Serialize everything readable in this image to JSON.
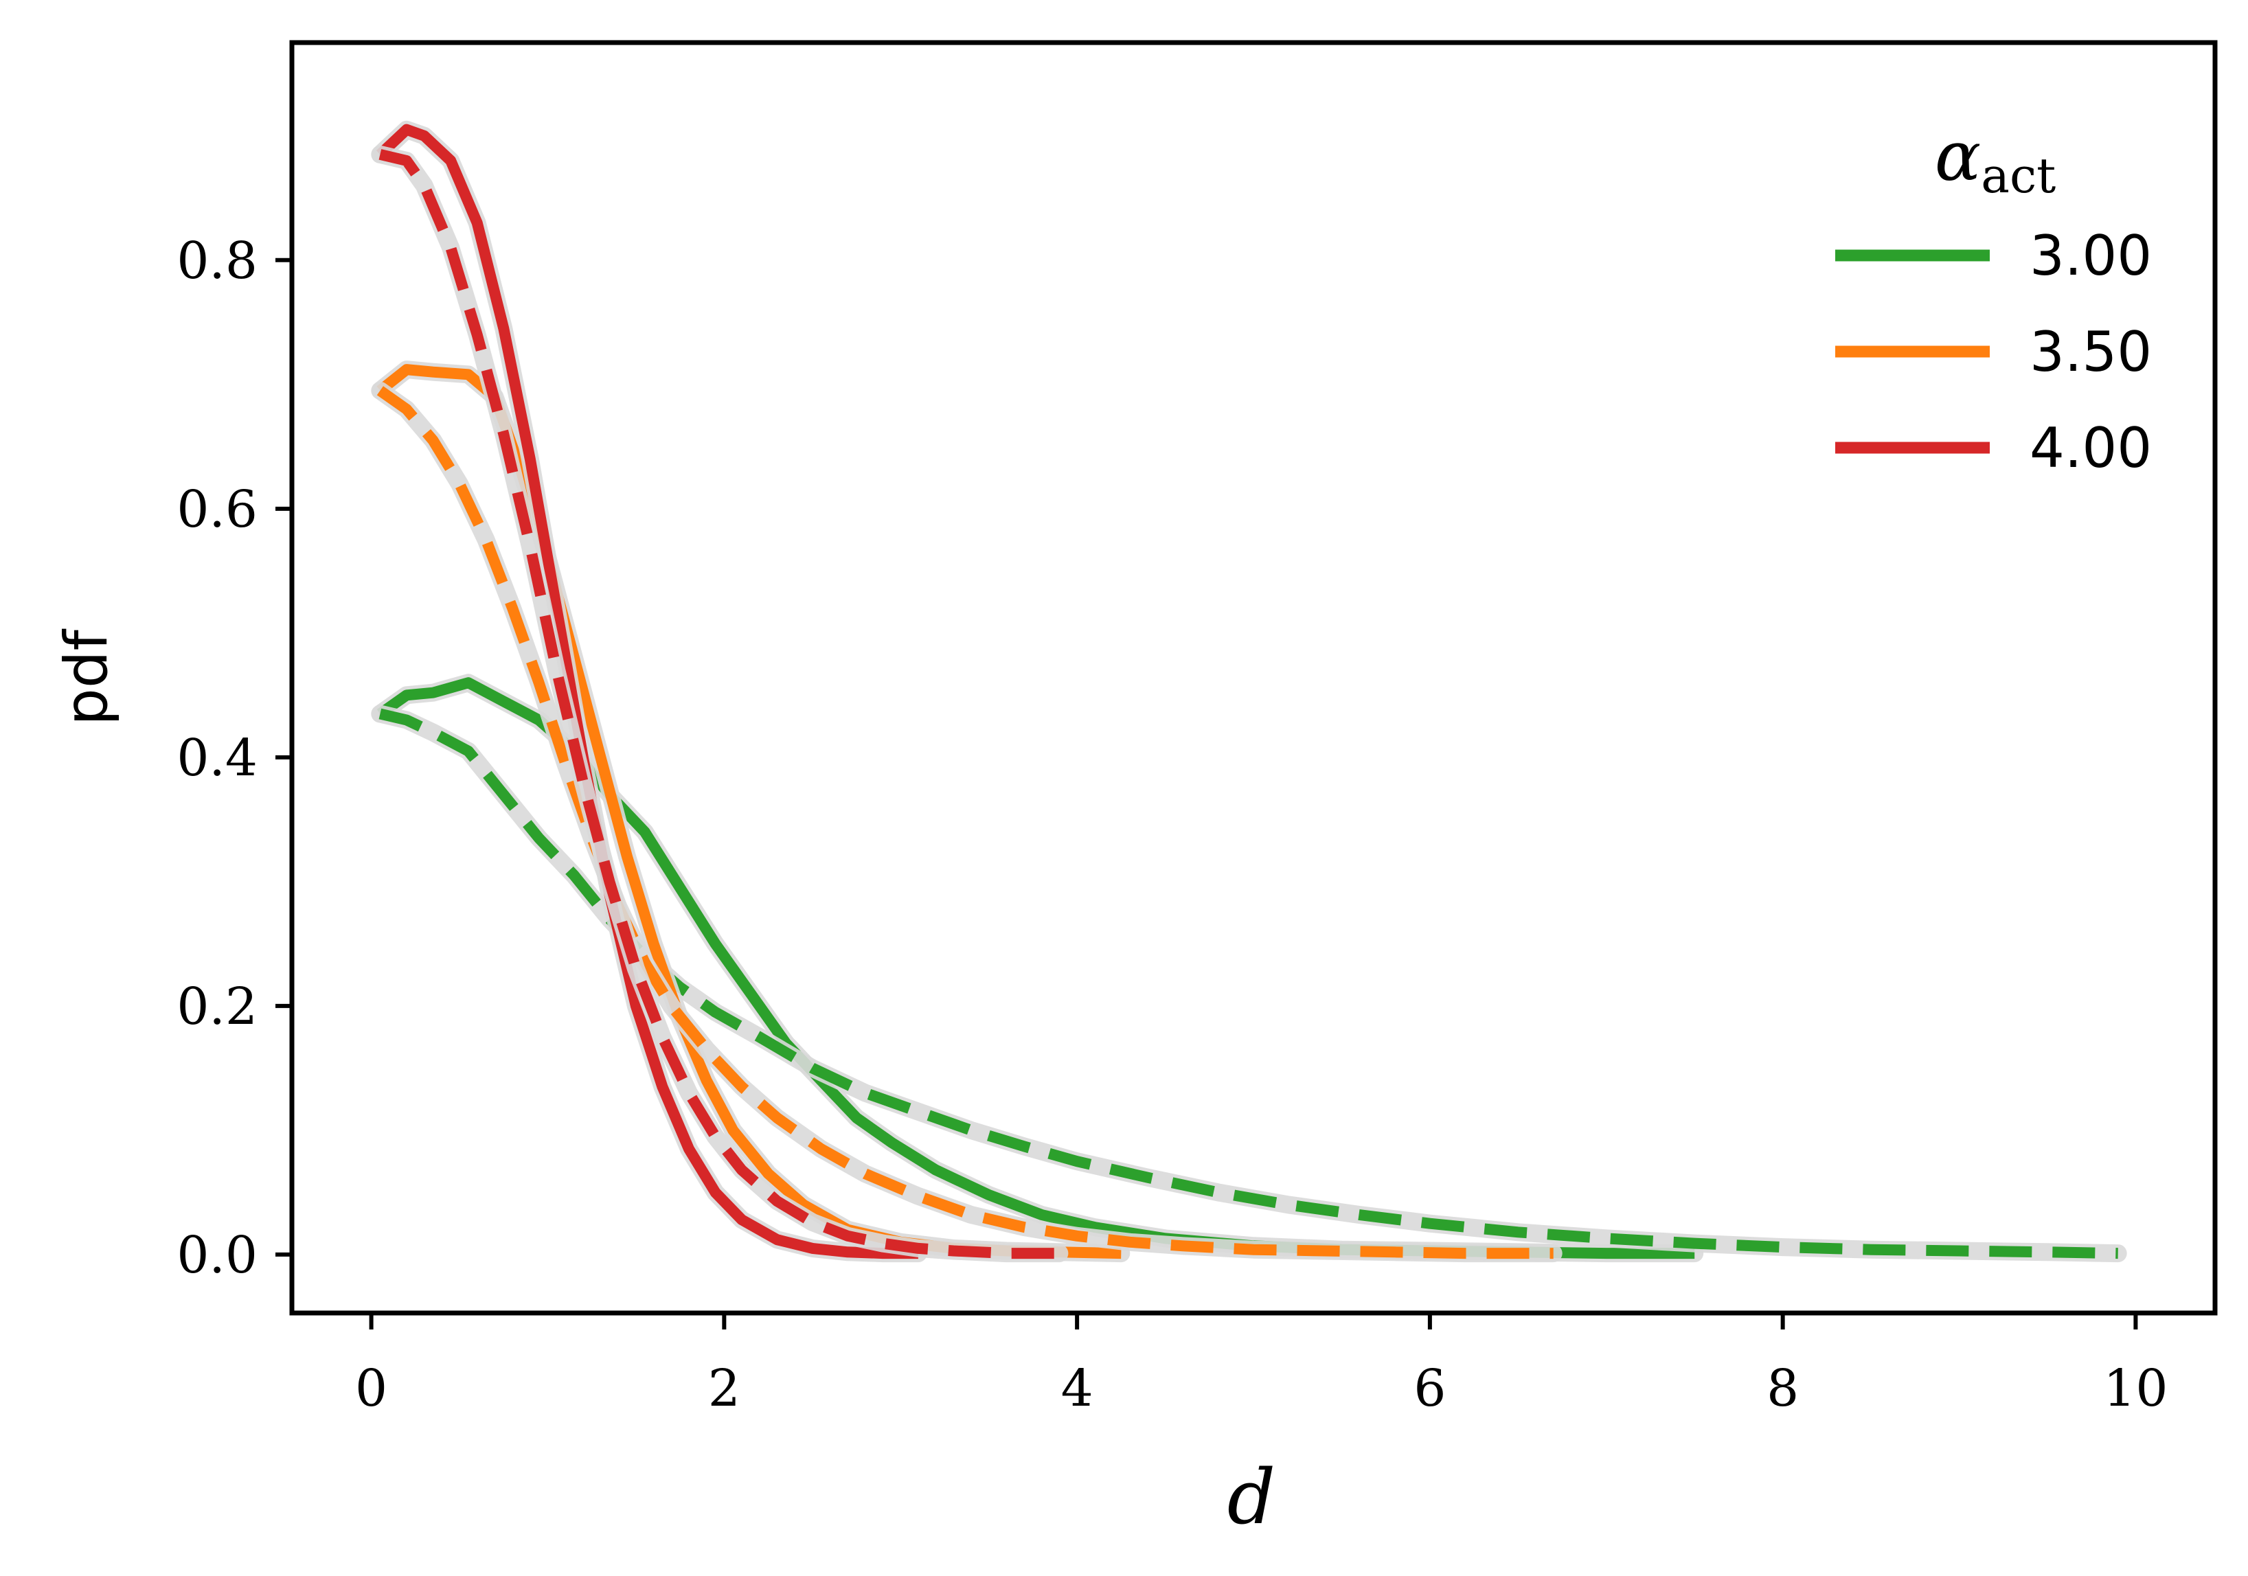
{
  "chart_data": {
    "type": "line",
    "xlabel": "d",
    "ylabel": "pdf",
    "xlim": [
      -0.45,
      10.45
    ],
    "ylim": [
      -0.047,
      0.975
    ],
    "xticks": [
      0,
      2,
      4,
      6,
      8,
      10
    ],
    "yticks": [
      0.0,
      0.2,
      0.4,
      0.6,
      0.8
    ],
    "xtick_labels": [
      "0",
      "2",
      "4",
      "6",
      "8",
      "10"
    ],
    "ytick_labels": [
      "0.0",
      "0.2",
      "0.4",
      "0.6",
      "0.8"
    ],
    "grid": false,
    "legend": {
      "title_main": "α",
      "title_sub": "act",
      "placement": "top-right"
    },
    "series": [
      {
        "name": "3.00",
        "color": "#2ca02c",
        "style": "solid",
        "x": [
          0.05,
          0.2,
          0.35,
          0.55,
          0.75,
          0.95,
          1.15,
          1.35,
          1.55,
          1.75,
          1.95,
          2.15,
          2.35,
          2.55,
          2.75,
          2.95,
          3.2,
          3.5,
          3.8,
          4.1,
          4.5,
          5.0,
          5.5,
          6.0,
          6.5,
          7.0,
          7.5
        ],
        "y": [
          0.435,
          0.45,
          0.452,
          0.46,
          0.445,
          0.43,
          0.405,
          0.37,
          0.34,
          0.295,
          0.25,
          0.21,
          0.17,
          0.14,
          0.11,
          0.09,
          0.068,
          0.048,
          0.032,
          0.022,
          0.013,
          0.007,
          0.004,
          0.003,
          0.002,
          0.001,
          0.001
        ]
      },
      {
        "name": "",
        "color": "#2ca02c",
        "style": "dashed",
        "x": [
          0.05,
          0.2,
          0.35,
          0.55,
          0.75,
          0.95,
          1.15,
          1.35,
          1.55,
          1.75,
          1.95,
          2.2,
          2.5,
          2.8,
          3.1,
          3.4,
          3.7,
          4.0,
          4.4,
          4.8,
          5.2,
          5.6,
          6.0,
          6.5,
          7.0,
          7.5,
          8.0,
          8.5,
          9.0,
          9.5,
          9.9
        ],
        "y": [
          0.435,
          0.43,
          0.42,
          0.405,
          0.37,
          0.335,
          0.305,
          0.27,
          0.24,
          0.215,
          0.195,
          0.175,
          0.15,
          0.13,
          0.115,
          0.1,
          0.087,
          0.075,
          0.062,
          0.05,
          0.04,
          0.032,
          0.025,
          0.018,
          0.013,
          0.009,
          0.006,
          0.004,
          0.003,
          0.002,
          0.001
        ]
      },
      {
        "name": "3.50",
        "color": "#ff7f0e",
        "style": "solid",
        "x": [
          0.05,
          0.2,
          0.35,
          0.55,
          0.7,
          0.85,
          1.0,
          1.15,
          1.3,
          1.45,
          1.6,
          1.75,
          1.9,
          2.05,
          2.25,
          2.45,
          2.7,
          3.0,
          3.3,
          3.6,
          3.9,
          4.25
        ],
        "y": [
          0.695,
          0.712,
          0.71,
          0.708,
          0.69,
          0.63,
          0.56,
          0.48,
          0.4,
          0.32,
          0.25,
          0.19,
          0.14,
          0.1,
          0.065,
          0.04,
          0.02,
          0.01,
          0.005,
          0.003,
          0.002,
          0.001
        ]
      },
      {
        "name": "",
        "color": "#ff7f0e",
        "style": "dashed",
        "x": [
          0.05,
          0.2,
          0.35,
          0.5,
          0.65,
          0.8,
          0.95,
          1.1,
          1.25,
          1.4,
          1.55,
          1.7,
          1.9,
          2.1,
          2.3,
          2.55,
          2.8,
          3.1,
          3.4,
          3.7,
          4.0,
          4.3,
          4.6,
          5.0,
          5.4,
          5.8,
          6.2,
          6.7
        ],
        "y": [
          0.695,
          0.68,
          0.655,
          0.62,
          0.575,
          0.52,
          0.46,
          0.395,
          0.335,
          0.28,
          0.235,
          0.2,
          0.165,
          0.135,
          0.11,
          0.085,
          0.065,
          0.047,
          0.032,
          0.022,
          0.015,
          0.01,
          0.007,
          0.004,
          0.003,
          0.002,
          0.001,
          0.001
        ]
      },
      {
        "name": "4.00",
        "color": "#d62728",
        "style": "solid",
        "x": [
          0.05,
          0.2,
          0.3,
          0.45,
          0.6,
          0.75,
          0.9,
          1.05,
          1.2,
          1.35,
          1.5,
          1.65,
          1.8,
          1.95,
          2.1,
          2.3,
          2.5,
          2.7,
          2.9,
          3.1
        ],
        "y": [
          0.885,
          0.905,
          0.9,
          0.88,
          0.83,
          0.745,
          0.64,
          0.52,
          0.4,
          0.29,
          0.2,
          0.135,
          0.085,
          0.05,
          0.028,
          0.012,
          0.005,
          0.002,
          0.001,
          0.001
        ]
      },
      {
        "name": "",
        "color": "#d62728",
        "style": "dashed",
        "x": [
          0.05,
          0.2,
          0.3,
          0.45,
          0.6,
          0.75,
          0.9,
          1.05,
          1.2,
          1.35,
          1.5,
          1.65,
          1.8,
          1.95,
          2.1,
          2.3,
          2.5,
          2.7,
          2.9,
          3.1,
          3.3,
          3.6,
          3.9
        ],
        "y": [
          0.885,
          0.88,
          0.86,
          0.81,
          0.74,
          0.66,
          0.57,
          0.47,
          0.38,
          0.3,
          0.23,
          0.175,
          0.13,
          0.095,
          0.068,
          0.043,
          0.026,
          0.015,
          0.009,
          0.005,
          0.003,
          0.001,
          0.001
        ]
      }
    ]
  }
}
